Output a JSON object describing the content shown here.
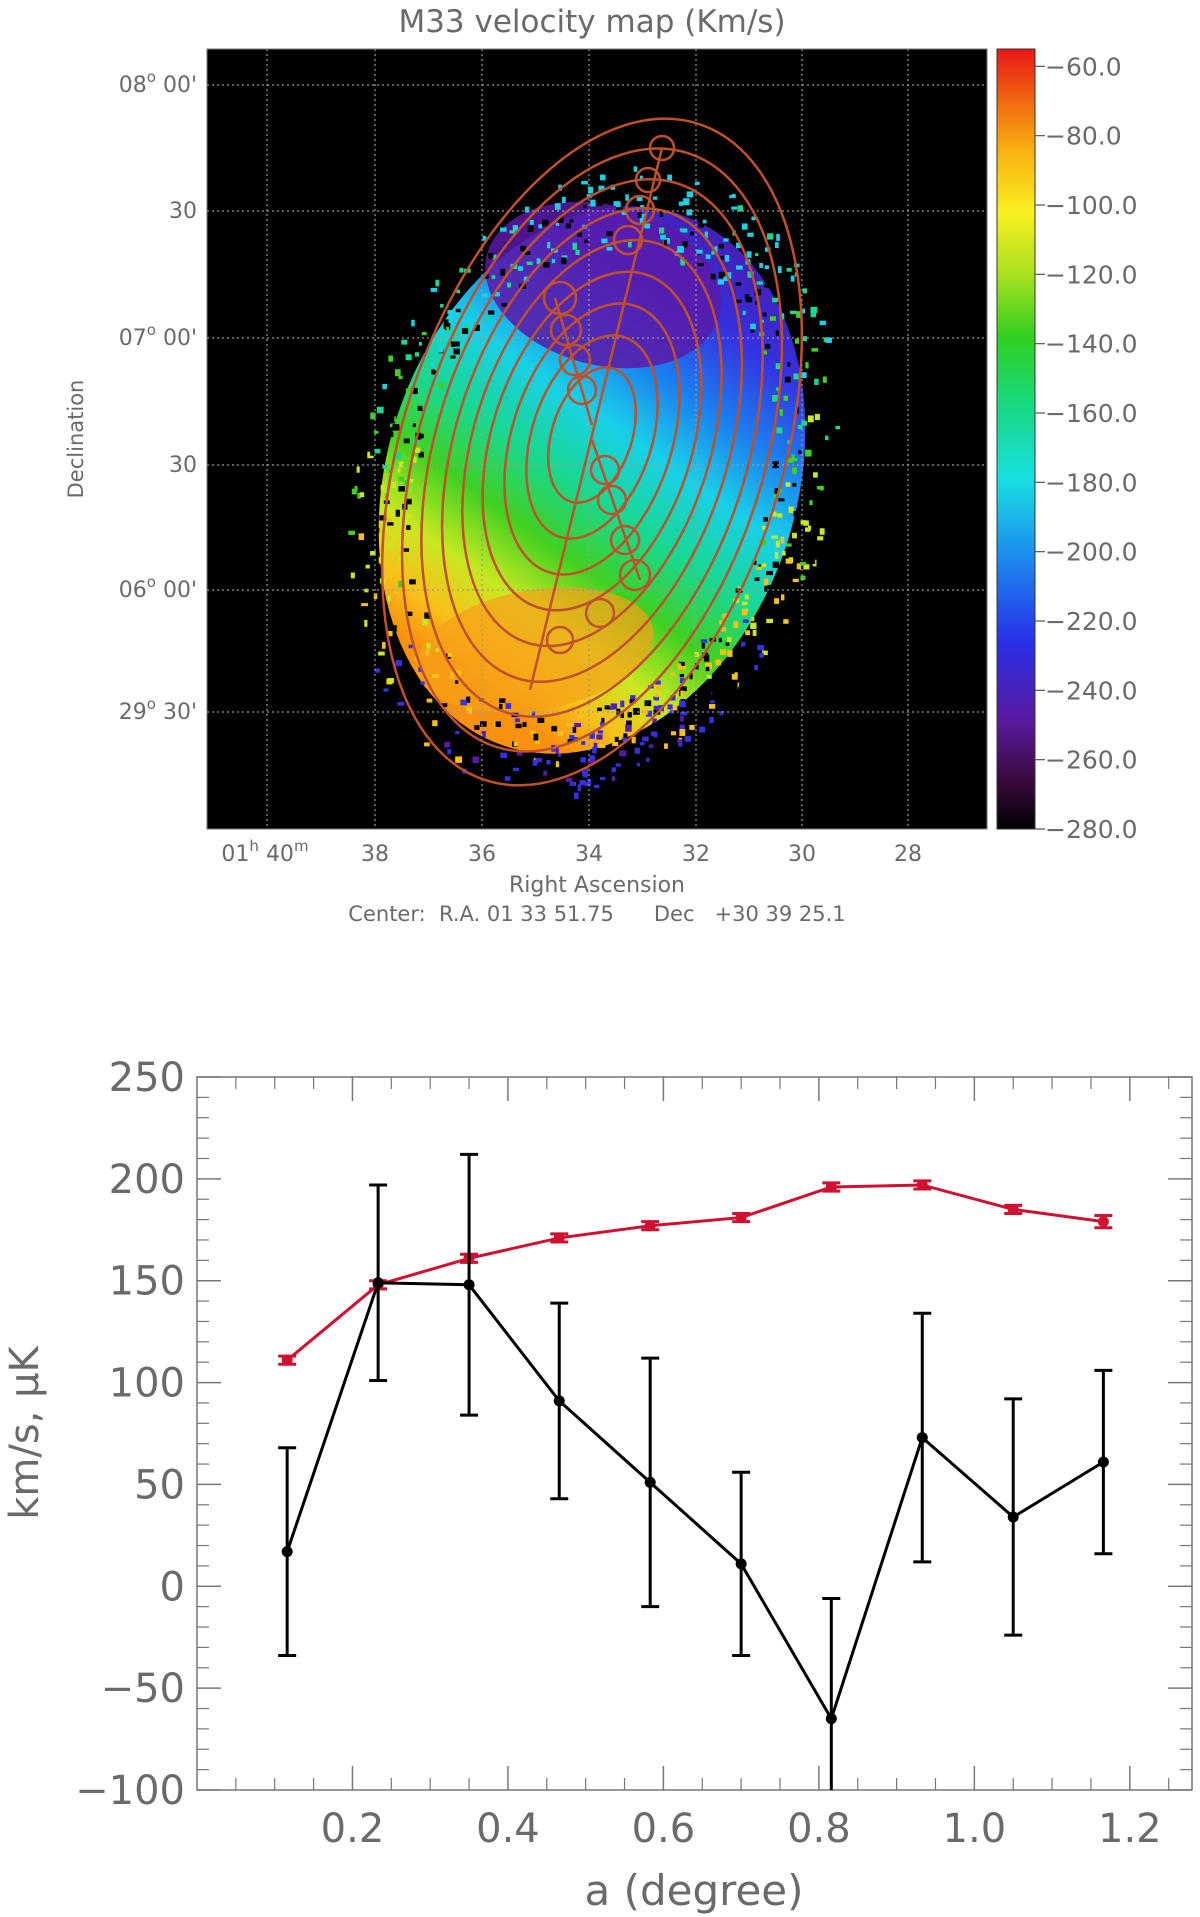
{
  "map": {
    "title": "M33 velocity map (Km/s)",
    "dec_ticks": [
      {
        "deg": "08",
        "min": "00'"
      },
      {
        "deg": "",
        "min": "30"
      },
      {
        "deg": "07",
        "min": "00'"
      },
      {
        "deg": "",
        "min": "30"
      },
      {
        "deg": "06",
        "min": "00'"
      },
      {
        "deg": "29",
        "min": "30'"
      }
    ],
    "ra_ticks": [
      "38",
      "36",
      "34",
      "32",
      "30",
      "28"
    ],
    "ra_first": {
      "h": "01",
      "m": "40"
    },
    "xlabel": "Right Ascension",
    "ylabel": "Declination",
    "center": "Center:  R.A. 01 33 51.75      Dec   +30 39 25.1",
    "colorbar_ticks": [
      "-60.0",
      "-80.0",
      "-100.0",
      "-120.0",
      "-140.0",
      "-160.0",
      "-180.0",
      "-200.0",
      "-220.0",
      "-240.0",
      "-260.0",
      "-280.0"
    ],
    "colorbar_range": [
      -280,
      -55
    ],
    "colors": {
      "background": "#000000",
      "overlay": "#c0502a",
      "grid": "#9a9a9a"
    }
  },
  "chart_data": {
    "type": "line",
    "xlabel": "a (degree)",
    "ylabel": "km/s, μK",
    "xlim": [
      0.0,
      1.28
    ],
    "ylim": [
      -100,
      250
    ],
    "xticks": [
      0.2,
      0.4,
      0.6,
      0.8,
      1.0,
      1.2
    ],
    "yticks": [
      -100,
      -50,
      0,
      50,
      100,
      150,
      200,
      250
    ],
    "series": [
      {
        "color": "#d01030",
        "x": [
          0.116,
          0.233,
          0.35,
          0.466,
          0.583,
          0.7,
          0.816,
          0.933,
          1.05,
          1.166
        ],
        "y": [
          111,
          148,
          161,
          171,
          177,
          181,
          196,
          197,
          185,
          179
        ],
        "err": [
          2,
          2,
          2,
          2,
          2,
          2,
          2,
          2,
          2,
          3
        ]
      },
      {
        "color": "#000000",
        "x": [
          0.116,
          0.233,
          0.35,
          0.466,
          0.583,
          0.7,
          0.816,
          0.933,
          1.05,
          1.166
        ],
        "y": [
          17,
          149,
          148,
          91,
          51,
          11,
          -65,
          73,
          34,
          61
        ],
        "err": [
          51,
          48,
          64,
          48,
          61,
          45,
          59,
          61,
          58,
          45
        ]
      }
    ]
  }
}
